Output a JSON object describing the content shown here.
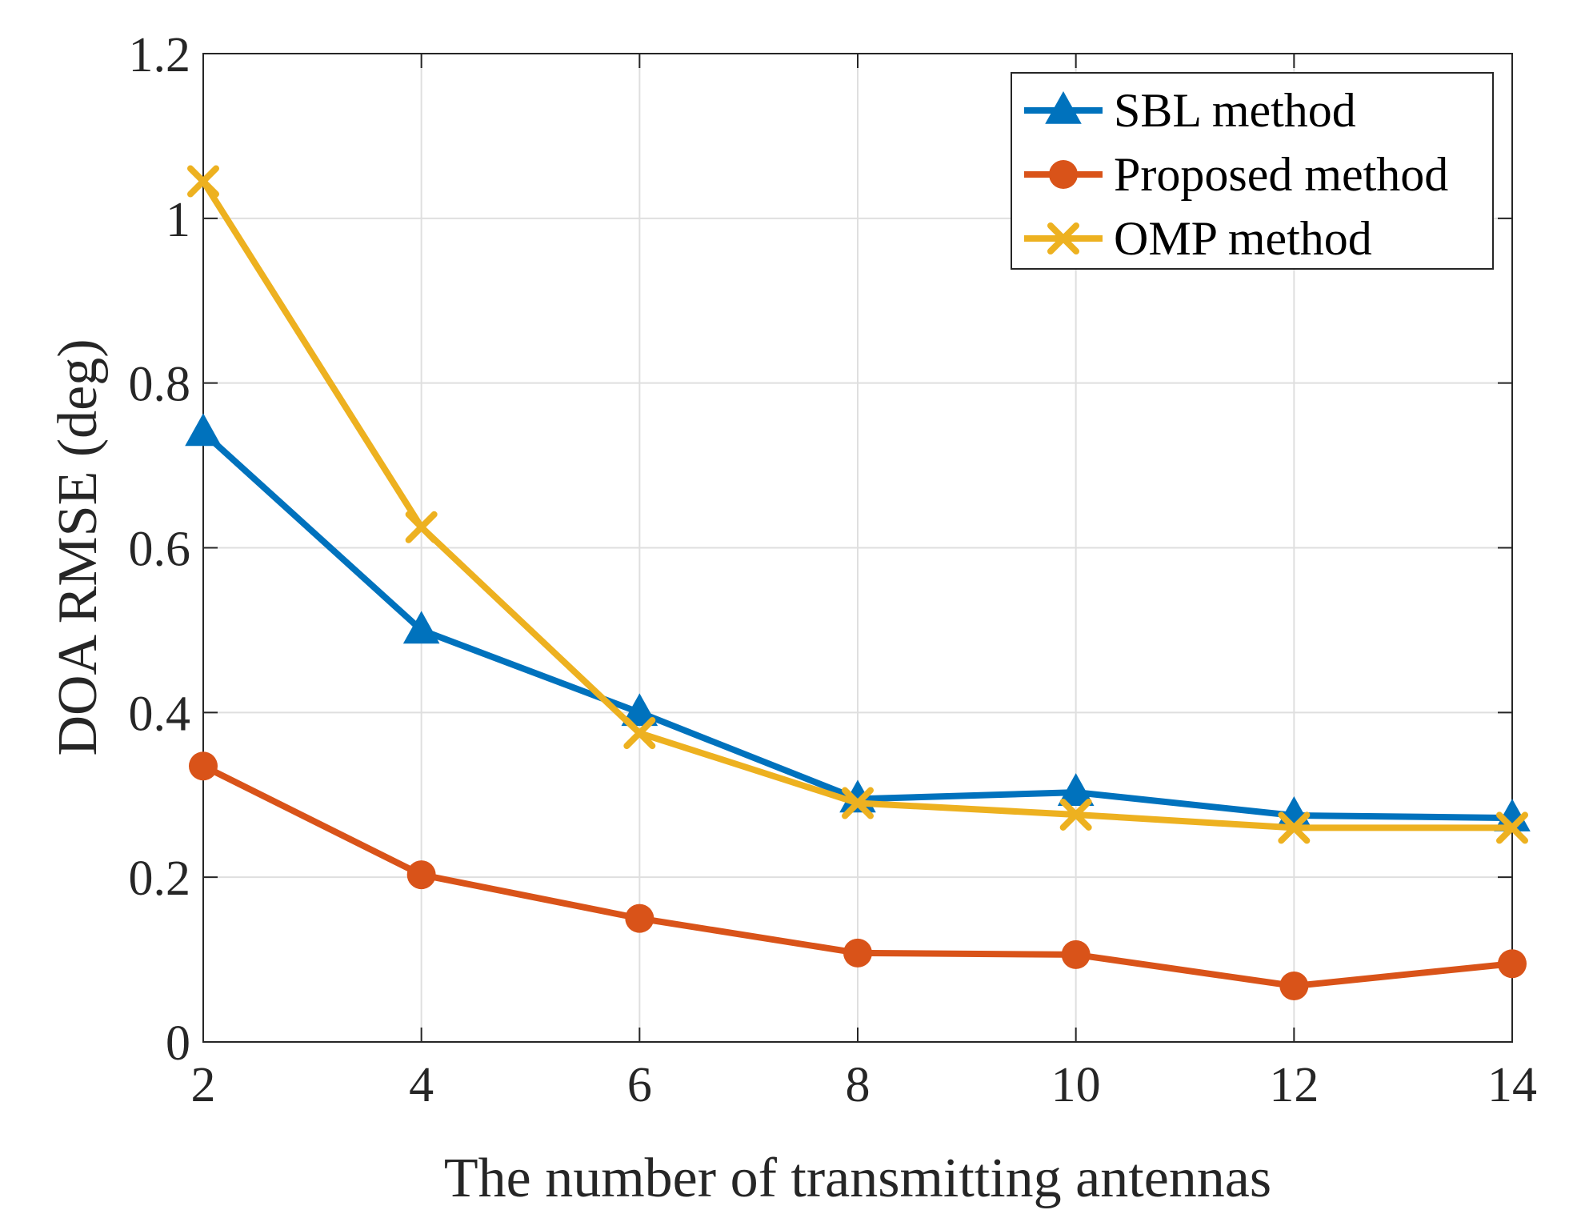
{
  "chart_data": {
    "type": "line",
    "title": "",
    "xlabel": "The number of transmitting antennas",
    "ylabel": "DOA RMSE (deg)",
    "x": [
      2,
      4,
      6,
      8,
      10,
      12,
      14
    ],
    "xlim": [
      2,
      14
    ],
    "ylim": [
      0,
      1.2
    ],
    "xticks": [
      2,
      4,
      6,
      8,
      10,
      12,
      14
    ],
    "yticks": [
      0,
      0.2,
      0.4,
      0.6,
      0.8,
      1,
      1.2
    ],
    "xtick_labels": [
      "2",
      "4",
      "6",
      "8",
      "10",
      "12",
      "14"
    ],
    "ytick_labels": [
      "0",
      "0.2",
      "0.4",
      "0.6",
      "0.8",
      "1",
      "1.2"
    ],
    "grid": true,
    "legend_position": "top-right",
    "series": [
      {
        "name": "SBL method",
        "marker": "triangle",
        "color": "#0072BD",
        "values": [
          0.74,
          0.5,
          0.4,
          0.295,
          0.303,
          0.275,
          0.272
        ]
      },
      {
        "name": "Proposed method",
        "marker": "circle",
        "color": "#D95319",
        "values": [
          0.335,
          0.203,
          0.15,
          0.108,
          0.106,
          0.068,
          0.095
        ]
      },
      {
        "name": "OMP method",
        "marker": "x",
        "color": "#EDB120",
        "values": [
          1.045,
          0.625,
          0.375,
          0.29,
          0.276,
          0.26,
          0.26
        ]
      }
    ]
  }
}
